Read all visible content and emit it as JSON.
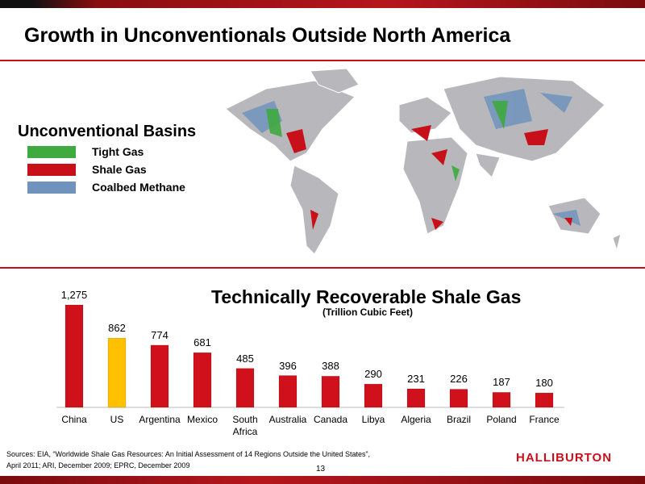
{
  "title": "Growth in Unconventionals Outside North America",
  "map_legend": {
    "title": "Unconventional Basins",
    "items": [
      {
        "label": "Tight Gas",
        "color": "#3faa3f"
      },
      {
        "label": "Shale Gas",
        "color": "#c8101a"
      },
      {
        "label": "Coalbed Methane",
        "color": "#6f93bd"
      }
    ]
  },
  "chart_data": {
    "type": "bar",
    "title": "Technically Recoverable Shale Gas",
    "subtitle": "(Trillion Cubic Feet)",
    "categories": [
      "China",
      "US",
      "Argentina",
      "Mexico",
      "South Africa",
      "Australia",
      "Canada",
      "Libya",
      "Algeria",
      "Brazil",
      "Poland",
      "France"
    ],
    "values": [
      1275,
      862,
      774,
      681,
      485,
      396,
      388,
      290,
      231,
      226,
      187,
      180
    ],
    "value_labels": [
      "1,275",
      "862",
      "774",
      "681",
      "485",
      "396",
      "388",
      "290",
      "231",
      "226",
      "187",
      "180"
    ],
    "colors": [
      "#d0101a",
      "#ffc000",
      "#d0101a",
      "#d0101a",
      "#d0101a",
      "#d0101a",
      "#d0101a",
      "#d0101a",
      "#d0101a",
      "#d0101a",
      "#d0101a",
      "#d0101a"
    ]
  },
  "sources": [
    "Sources: EIA, “Worldwide Shale Gas Resources: An Initial Assessment of 14 Regions Outside the United States”,",
    "April 2011; ARI, December 2009; EPRC, December 2009"
  ],
  "page_number": "13",
  "logo": "HALLIBURTON"
}
